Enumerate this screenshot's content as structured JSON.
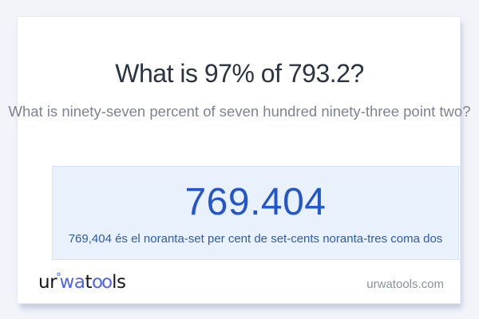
{
  "title": "What is 97% of 793.2?",
  "subtitle": "What is ninety-seven percent of seven hundred ninety-three point two?",
  "answer": {
    "value": "769.404",
    "sentence": "769,404 és el noranta-set per cent de set-cents noranta-tres coma dos"
  },
  "footer": {
    "logo": {
      "seg1": "ur",
      "ring": "°",
      "seg2": "wa",
      "seg3": "t",
      "seg4": "oo",
      "seg5": "ls"
    },
    "site": "urwatools.com"
  },
  "colors": {
    "page_background": "#f2f4f9",
    "card_background": "#ffffff",
    "title_text": "#2b3443",
    "subtitle_text": "#7c8493",
    "answer_box_background": "#e9f1fc",
    "answer_box_border": "#d7e5f6",
    "answer_value": "#2356cb",
    "answer_sentence": "#2f5bab",
    "logo_dark": "#17181c",
    "logo_accent": "#4e63f7",
    "site_text": "#8b919e"
  }
}
